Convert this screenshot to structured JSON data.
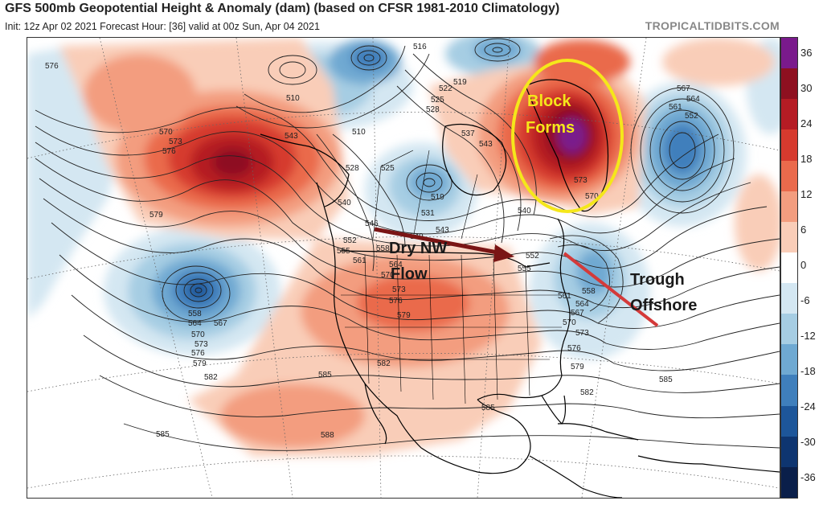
{
  "header": {
    "title": "GFS 500mb Geopotential Height & Anomaly (dam) (based on CFSR 1981-2010 Climatology)",
    "subtitle": "Init: 12z Apr 02 2021   Forecast Hour: [36]   valid at 00z Sun, Apr 04 2021",
    "credit": "TROPICALTIDBITS.COM"
  },
  "annotations": {
    "block_line1": "Block",
    "block_line2": "Forms",
    "flow_line1": "Dry NW",
    "flow_line2": "Flow",
    "trough_line1": "Trough",
    "trough_line2": "Offshore"
  },
  "contour_labels": {
    "c576a": "576",
    "c510a": "510",
    "c516a": "516",
    "c519a": "519",
    "c522a": "522",
    "c525a": "525",
    "c528a": "528",
    "c567a": "567",
    "c564a": "564",
    "c561a": "561",
    "c552a": "552",
    "c543a": "543",
    "c537a": "537",
    "c570a": "570",
    "c573a": "573",
    "c576b": "576",
    "c579a": "579",
    "c510b": "510",
    "c528b": "528",
    "c525b": "525",
    "c519b": "519",
    "c531a": "531",
    "c540a": "540",
    "c543b": "543",
    "c546a": "546",
    "c549a": "549",
    "c552b": "552",
    "c555a": "555",
    "c558a": "558",
    "c561b": "561",
    "c564b": "564",
    "c567b": "567",
    "c570b": "570",
    "c573b": "573",
    "c576c": "576",
    "c579b": "579",
    "c558b": "558",
    "c564c": "564",
    "c567c": "567",
    "c570c": "570",
    "c573c": "573",
    "c576d": "576",
    "c579c": "579",
    "c582a": "582",
    "c585a": "585",
    "c582b": "582",
    "c585b": "585",
    "c588a": "588",
    "c585c": "585",
    "c582c": "582",
    "c579d": "579",
    "c576e": "576",
    "c573d": "573",
    "c570d": "570",
    "c567d": "567",
    "c564d": "564",
    "c561c": "561",
    "c558c": "558",
    "c552c": "552",
    "c555b": "555",
    "c585d": "585",
    "c573e": "573",
    "c570e": "570",
    "c543c": "543",
    "c540b": "540"
  },
  "colorbar": {
    "ticks": [
      "36",
      "30",
      "24",
      "18",
      "12",
      "6",
      "0",
      "-6",
      "-12",
      "-18",
      "-24",
      "-30",
      "-36"
    ],
    "colors": [
      "#7a1a8c",
      "#8e1020",
      "#b51c24",
      "#d63a2e",
      "#ea6a4c",
      "#f39d7f",
      "#f9cdb8",
      "#ffffff",
      "#d4e7f2",
      "#a6cde3",
      "#6fa9d2",
      "#3f7fbc",
      "#1d569a",
      "#0e3570",
      "#0a1f4a"
    ]
  }
}
